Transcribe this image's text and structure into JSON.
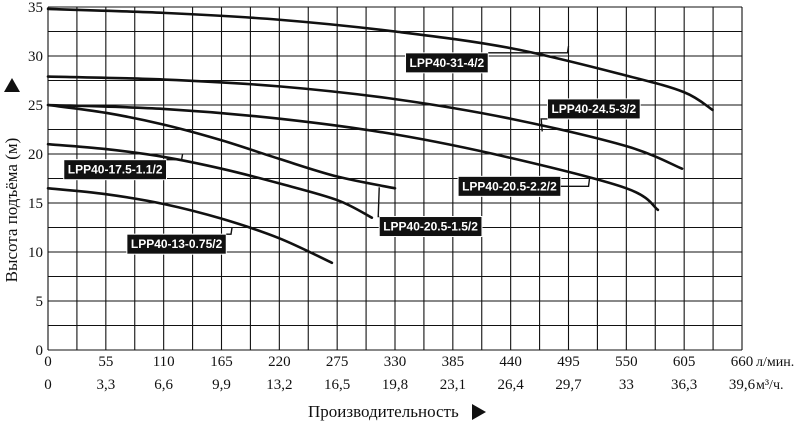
{
  "chart_data": {
    "type": "line",
    "x_label": "Производительность",
    "y_label": "Высота подъёма (м)",
    "x_unit_primary": "л/мин.",
    "x_unit_secondary": "м³/ч.",
    "x_ticks_primary": [
      "0",
      "55",
      "110",
      "165",
      "220",
      "275",
      "330",
      "385",
      "440",
      "495",
      "550",
      "605",
      "660"
    ],
    "x_ticks_secondary": [
      "0",
      "3,3",
      "6,6",
      "9,9",
      "13,2",
      "16,5",
      "19,8",
      "23,1",
      "26,4",
      "29,7",
      "33",
      "36,3",
      "39,6"
    ],
    "y_ticks": [
      "0",
      "5",
      "10",
      "15",
      "20",
      "25",
      "30",
      "35"
    ],
    "xlim": [
      0,
      660
    ],
    "ylim": [
      0,
      35
    ],
    "grid": true,
    "series": [
      {
        "name": "LPP40-31-4/2",
        "points": [
          [
            0,
            34.8
          ],
          [
            110,
            34.4
          ],
          [
            220,
            33.7
          ],
          [
            330,
            32.5
          ],
          [
            440,
            30.8
          ],
          [
            550,
            28.0
          ],
          [
            605,
            26.3
          ],
          [
            632,
            24.5
          ]
        ],
        "label_at": [
          495,
          31
        ],
        "label_box": [
          340,
          29.3
        ],
        "label_anchor": "start"
      },
      {
        "name": "LPP40-24.5-3/2",
        "points": [
          [
            0,
            27.9
          ],
          [
            110,
            27.6
          ],
          [
            220,
            26.9
          ],
          [
            330,
            25.6
          ],
          [
            440,
            23.6
          ],
          [
            550,
            20.8
          ],
          [
            603,
            18.5
          ]
        ],
        "label_at": [
          470,
          22.3
        ],
        "label_box": [
          475,
          24.6
        ],
        "label_anchor": "start"
      },
      {
        "name": "LPP40-20.5-2.2/2",
        "points": [
          [
            0,
            25.0
          ],
          [
            110,
            24.6
          ],
          [
            220,
            23.6
          ],
          [
            330,
            22.0
          ],
          [
            440,
            19.6
          ],
          [
            550,
            16.5
          ],
          [
            580,
            14.3
          ]
        ],
        "label_at": [
          515,
          17.5
        ],
        "label_box": [
          390,
          16.7
        ],
        "label_anchor": "start"
      },
      {
        "name": "LPP40-20.5-1.5/2",
        "points": [
          [
            0,
            25.0
          ],
          [
            55,
            24.2
          ],
          [
            110,
            23.0
          ],
          [
            165,
            21.4
          ],
          [
            220,
            19.5
          ],
          [
            275,
            17.7
          ],
          [
            330,
            16.5
          ]
        ],
        "label_at": [
          315,
          16.6
        ],
        "label_box": [
          315,
          12.6
        ],
        "label_anchor": "start"
      },
      {
        "name": "LPP40-17.5-1.1/2",
        "points": [
          [
            0,
            21.0
          ],
          [
            55,
            20.5
          ],
          [
            110,
            19.7
          ],
          [
            165,
            18.5
          ],
          [
            220,
            17.0
          ],
          [
            275,
            15.3
          ],
          [
            308,
            13.5
          ]
        ],
        "label_at": [
          128,
          20.0
        ],
        "label_box": [
          15,
          18.4
        ],
        "label_anchor": "start"
      },
      {
        "name": "LPP40-13-0.75/2",
        "points": [
          [
            0,
            16.5
          ],
          [
            55,
            15.9
          ],
          [
            110,
            14.9
          ],
          [
            165,
            13.4
          ],
          [
            220,
            11.4
          ],
          [
            270,
            8.9
          ]
        ],
        "label_at": [
          175,
          12.5
        ],
        "label_box": [
          75,
          10.8
        ],
        "label_anchor": "start"
      }
    ]
  }
}
